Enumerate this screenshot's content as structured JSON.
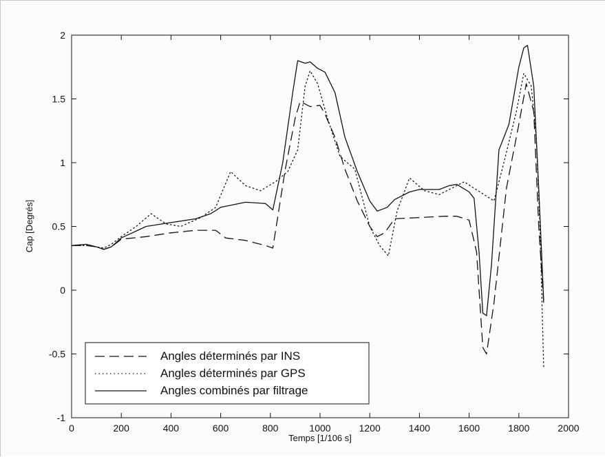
{
  "chart_data": {
    "type": "line",
    "xlabel": "Temps [1/106 s]",
    "ylabel": "Cap [Degrés]",
    "xlim": [
      0,
      2000
    ],
    "ylim": [
      -1,
      2
    ],
    "xticks": [
      0,
      200,
      400,
      600,
      800,
      1000,
      1200,
      1400,
      1600,
      1800,
      2000
    ],
    "yticks": [
      -1,
      -0.5,
      0,
      0.5,
      1,
      1.5,
      2
    ],
    "ytick_labels": [
      "-1",
      "-0.5",
      "0",
      "0.5",
      "1",
      "1.5",
      "2"
    ],
    "grid": false,
    "legend_position": "bottom-left",
    "series": [
      {
        "name": "Angles déterminés par INS",
        "style": "dashed",
        "color": "#111111",
        "x": [
          0,
          60,
          100,
          130,
          160,
          200,
          300,
          400,
          500,
          580,
          620,
          700,
          780,
          810,
          860,
          900,
          920,
          960,
          1000,
          1020,
          1060,
          1100,
          1150,
          1200,
          1230,
          1260,
          1300,
          1400,
          1500,
          1550,
          1600,
          1630,
          1655,
          1670,
          1700,
          1750,
          1800,
          1830,
          1860,
          1880,
          1900
        ],
        "y": [
          0.35,
          0.35,
          0.34,
          0.32,
          0.34,
          0.4,
          0.42,
          0.45,
          0.47,
          0.47,
          0.41,
          0.39,
          0.35,
          0.33,
          0.95,
          1.35,
          1.48,
          1.44,
          1.45,
          1.38,
          1.2,
          0.95,
          0.7,
          0.5,
          0.42,
          0.45,
          0.56,
          0.57,
          0.58,
          0.58,
          0.55,
          0.3,
          -0.45,
          -0.5,
          -0.1,
          0.8,
          1.3,
          1.62,
          1.4,
          0.5,
          -0.1
        ]
      },
      {
        "name": "Angles déterminés par GPS",
        "style": "dotted",
        "color": "#111111",
        "x": [
          0,
          60,
          100,
          130,
          160,
          200,
          260,
          320,
          380,
          440,
          520,
          580,
          640,
          700,
          760,
          820,
          870,
          910,
          940,
          960,
          990,
          1030,
          1080,
          1140,
          1200,
          1240,
          1275,
          1310,
          1360,
          1420,
          1480,
          1530,
          1580,
          1620,
          1660,
          1700,
          1740,
          1790,
          1820,
          1850,
          1870,
          1885,
          1900
        ],
        "y": [
          0.35,
          0.35,
          0.34,
          0.33,
          0.36,
          0.42,
          0.5,
          0.6,
          0.52,
          0.5,
          0.57,
          0.65,
          0.93,
          0.82,
          0.78,
          0.85,
          0.93,
          1.1,
          1.6,
          1.72,
          1.62,
          1.35,
          1.05,
          0.95,
          0.5,
          0.35,
          0.27,
          0.62,
          0.88,
          0.78,
          0.75,
          0.8,
          0.85,
          0.8,
          0.75,
          0.7,
          1.0,
          1.4,
          1.7,
          1.6,
          1.2,
          0.5,
          -0.6
        ]
      },
      {
        "name": "Angles combinés par filtrage",
        "style": "solid",
        "color": "#111111",
        "x": [
          0,
          60,
          100,
          130,
          160,
          200,
          300,
          400,
          500,
          560,
          600,
          700,
          780,
          810,
          850,
          890,
          910,
          940,
          960,
          990,
          1020,
          1060,
          1100,
          1150,
          1200,
          1230,
          1270,
          1300,
          1360,
          1400,
          1480,
          1520,
          1550,
          1600,
          1620,
          1640,
          1655,
          1670,
          1690,
          1720,
          1760,
          1800,
          1820,
          1835,
          1860,
          1880,
          1900
        ],
        "y": [
          0.35,
          0.36,
          0.34,
          0.32,
          0.34,
          0.41,
          0.5,
          0.53,
          0.56,
          0.6,
          0.65,
          0.69,
          0.68,
          0.63,
          1.0,
          1.55,
          1.8,
          1.78,
          1.79,
          1.74,
          1.71,
          1.55,
          1.2,
          0.93,
          0.7,
          0.62,
          0.65,
          0.71,
          0.77,
          0.79,
          0.79,
          0.82,
          0.83,
          0.77,
          0.72,
          0.3,
          -0.18,
          -0.2,
          0.2,
          1.1,
          1.3,
          1.75,
          1.9,
          1.92,
          1.6,
          0.8,
          -0.08
        ]
      }
    ]
  }
}
